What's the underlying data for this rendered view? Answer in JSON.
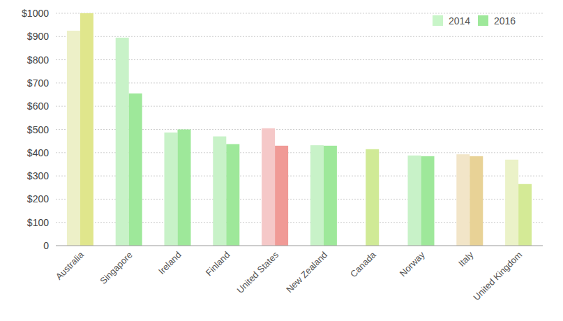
{
  "chart_data": {
    "type": "bar",
    "categories": [
      "Australia",
      "Singapore",
      "Ireland",
      "Finland",
      "United States",
      "New Zealand",
      "Canada",
      "Norway",
      "Italy",
      "United Kingdom"
    ],
    "series": [
      {
        "name": "2014",
        "color": "#c8f5c8",
        "values": [
          925,
          895,
          487,
          470,
          505,
          432,
          null,
          388,
          393,
          370
        ],
        "colors": [
          "#edf0c8",
          "#c8f2c8",
          "#c8f2c8",
          "#c8f2c8",
          "#f5c8c8",
          "#c8f2c8",
          "#c8f2c8",
          "#c8f2c8",
          "#f2e5c8",
          "#ebf2c8"
        ]
      },
      {
        "name": "2016",
        "color": "#9ee89a",
        "values": [
          1000,
          655,
          500,
          437,
          430,
          430,
          415,
          385,
          385,
          265
        ],
        "colors": [
          "#e0e68c",
          "#9ee89a",
          "#9ee89a",
          "#9ee89a",
          "#f09a96",
          "#9ee89a",
          "#d0ea96",
          "#9ee89a",
          "#e8d296",
          "#d4ea96"
        ]
      }
    ],
    "ylim": [
      0,
      1000
    ],
    "yticks": [
      0,
      {
        "value": 100,
        "label": "$100"
      },
      {
        "value": 200,
        "label": "$200"
      },
      {
        "value": 300,
        "label": "$300"
      },
      {
        "value": 400,
        "label": "$400"
      },
      {
        "value": 500,
        "label": "$500"
      },
      {
        "value": 600,
        "label": "$600"
      },
      {
        "value": 700,
        "label": "$700"
      },
      {
        "value": 800,
        "label": "$800"
      },
      {
        "value": 900,
        "label": "$900"
      },
      {
        "value": 1000,
        "label": "$1000"
      }
    ],
    "grid": true,
    "legend": "top-right"
  }
}
